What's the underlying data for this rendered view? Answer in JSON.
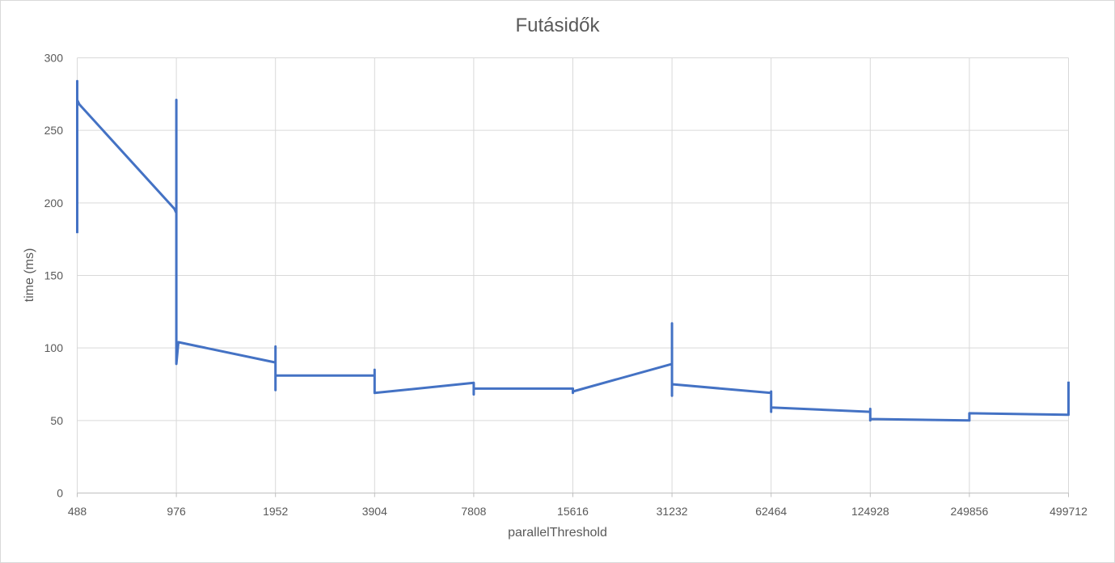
{
  "chart_data": {
    "type": "line",
    "title": "Futásidők",
    "xlabel": "parallelThreshold",
    "ylabel": "time (ms)",
    "ylim": [
      0,
      300
    ],
    "yticks": [
      0,
      50,
      100,
      150,
      200,
      250,
      300
    ],
    "categories": [
      "488",
      "976",
      "1952",
      "3904",
      "7808",
      "15616",
      "31232",
      "62464",
      "124928",
      "249856",
      "499712"
    ],
    "x": [
      0,
      0,
      0,
      0.02,
      0.98,
      1,
      1,
      1,
      1,
      1.02,
      2,
      2,
      2,
      2,
      2,
      3,
      3,
      3,
      3,
      3,
      4,
      4,
      4,
      4,
      4,
      5,
      5,
      5,
      5,
      6,
      6,
      6,
      6,
      6,
      6,
      7,
      7,
      7,
      7,
      8,
      8,
      8,
      8,
      9,
      9,
      10,
      10
    ],
    "series": [
      {
        "name": "",
        "color": "#4472c4",
        "values": [
          180,
          284,
          271,
          268,
          196,
          193,
          271,
          105,
          89,
          104,
          90,
          101,
          71,
          81,
          81,
          81,
          85,
          69,
          70,
          69,
          76,
          76,
          68,
          72,
          72,
          72,
          70,
          69,
          70,
          89,
          89,
          117,
          67,
          75,
          75,
          69,
          70,
          56,
          59,
          56,
          58,
          50,
          51,
          50,
          55,
          54,
          76
        ]
      }
    ],
    "grid": true,
    "legend": "none"
  }
}
